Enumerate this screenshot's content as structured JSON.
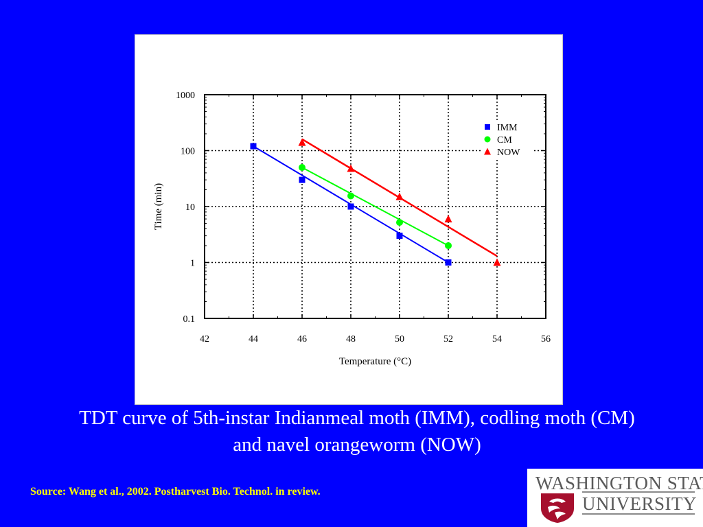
{
  "chart_data": {
    "type": "scatter",
    "title": "",
    "xlabel": "Temperature (°C)",
    "ylabel": "Time (min)",
    "xlim": [
      42,
      56
    ],
    "ylim": [
      0.1,
      1000
    ],
    "yscale": "log",
    "grid": true,
    "legend_position": "top-right",
    "x_ticks": [
      "42",
      "44",
      "46",
      "48",
      "50",
      "52",
      "54",
      "56"
    ],
    "y_ticks": [
      "0.1",
      "1",
      "10",
      "100",
      "1000"
    ],
    "series": [
      {
        "name": "IMM",
        "marker": "square",
        "color": "#0000ff",
        "points": [
          [
            44,
            120
          ],
          [
            46,
            30
          ],
          [
            48,
            10
          ],
          [
            50,
            3
          ],
          [
            52,
            1
          ]
        ],
        "fit": [
          [
            44,
            120
          ],
          [
            52,
            1
          ]
        ]
      },
      {
        "name": "CM",
        "marker": "circle",
        "color": "#00ff00",
        "points": [
          [
            46,
            50
          ],
          [
            48,
            15.5
          ],
          [
            50,
            5.2
          ],
          [
            52,
            2
          ]
        ],
        "fit": [
          [
            46,
            50
          ],
          [
            52,
            2
          ]
        ]
      },
      {
        "name": "NOW",
        "marker": "triangle",
        "color": "#ff0000",
        "points": [
          [
            46,
            140
          ],
          [
            48,
            48
          ],
          [
            50,
            15
          ],
          [
            52,
            6
          ],
          [
            54,
            1
          ]
        ],
        "fit": [
          [
            46,
            160
          ],
          [
            54,
            1.3
          ]
        ]
      }
    ]
  },
  "caption": "TDT curve of 5th-instar Indianmeal moth (IMM), codling moth (CM) and navel orangeworm (NOW)",
  "source": "Source: Wang et al., 2002. Postharvest Bio. Technol.  in review.",
  "logo": {
    "line1": "WASHINGTON STATE",
    "line2": "UNIVERSITY"
  },
  "colors": {
    "background": "#0000ff",
    "caption": "#ffffff",
    "source": "#ffff00"
  }
}
